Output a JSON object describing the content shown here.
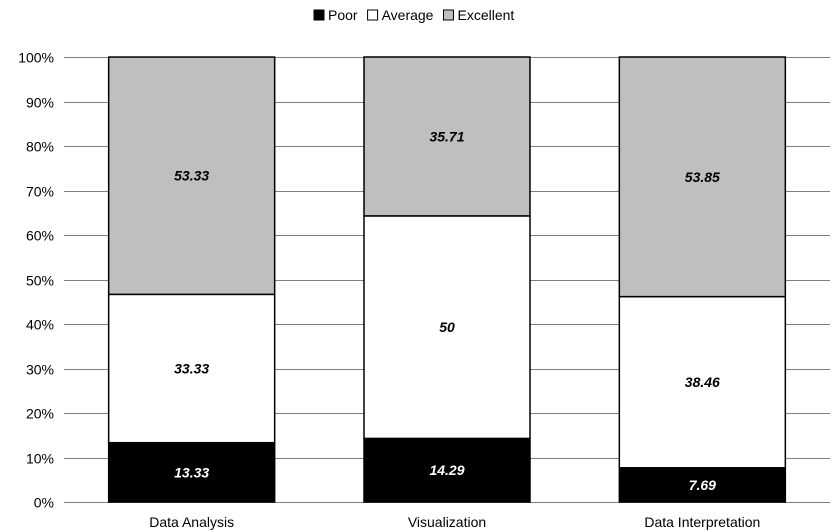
{
  "chart_data": {
    "type": "bar",
    "stacked": true,
    "percent": true,
    "categories": [
      "Data Analysis",
      "Visualization",
      "Data Interpretation"
    ],
    "series": [
      {
        "name": "Poor",
        "values": [
          13.33,
          14.29,
          7.69
        ],
        "color": "#000000",
        "label_color": "#ffffff"
      },
      {
        "name": "Average",
        "values": [
          33.33,
          50,
          38.46
        ],
        "color": "#ffffff",
        "label_color": "#000000"
      },
      {
        "name": "Excellent",
        "values": [
          53.33,
          35.71,
          53.85
        ],
        "color": "#bfbfbf",
        "label_color": "#000000"
      }
    ],
    "data_labels": [
      [
        "13.33",
        "14.29",
        "7.69"
      ],
      [
        "33.33",
        "50",
        "38.46"
      ],
      [
        "53.33",
        "35.71",
        "53.85"
      ]
    ],
    "ylim": [
      0,
      100
    ],
    "yticks": [
      0,
      10,
      20,
      30,
      40,
      50,
      60,
      70,
      80,
      90,
      100
    ],
    "ytick_labels": [
      "0%",
      "10%",
      "20%",
      "30%",
      "40%",
      "50%",
      "60%",
      "70%",
      "80%",
      "90%",
      "100%"
    ],
    "grid": true,
    "legend_position": "top-center"
  }
}
